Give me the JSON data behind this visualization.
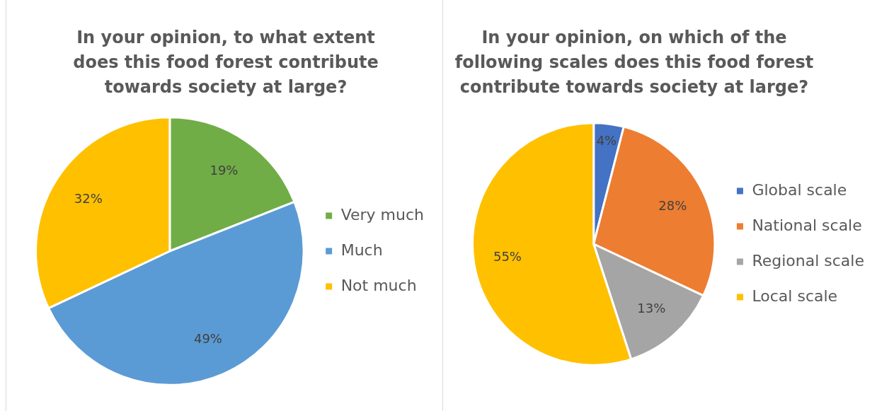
{
  "chart_data": [
    {
      "type": "pie",
      "title": "In your opinion, to what extent does this food forest contribute towards society at large?",
      "categories": [
        "Very much",
        "Much",
        "Not much"
      ],
      "values": [
        19,
        49,
        32
      ],
      "colors": [
        "#70ad47",
        "#5b9bd5",
        "#ffc000"
      ],
      "value_labels": [
        "19%",
        "49%",
        "32%"
      ],
      "legend": "right"
    },
    {
      "type": "pie",
      "title": "In your opinion, on which of the following scales does this food forest contribute towards society at large?",
      "categories": [
        "Global scale",
        "National scale",
        "Regional scale",
        "Local scale"
      ],
      "values": [
        4,
        28,
        13,
        55
      ],
      "colors": [
        "#4472c4",
        "#ed7d31",
        "#a5a5a5",
        "#ffc000"
      ],
      "value_labels": [
        "4%",
        "28%",
        "13%",
        "55%"
      ],
      "legend": "right"
    }
  ]
}
